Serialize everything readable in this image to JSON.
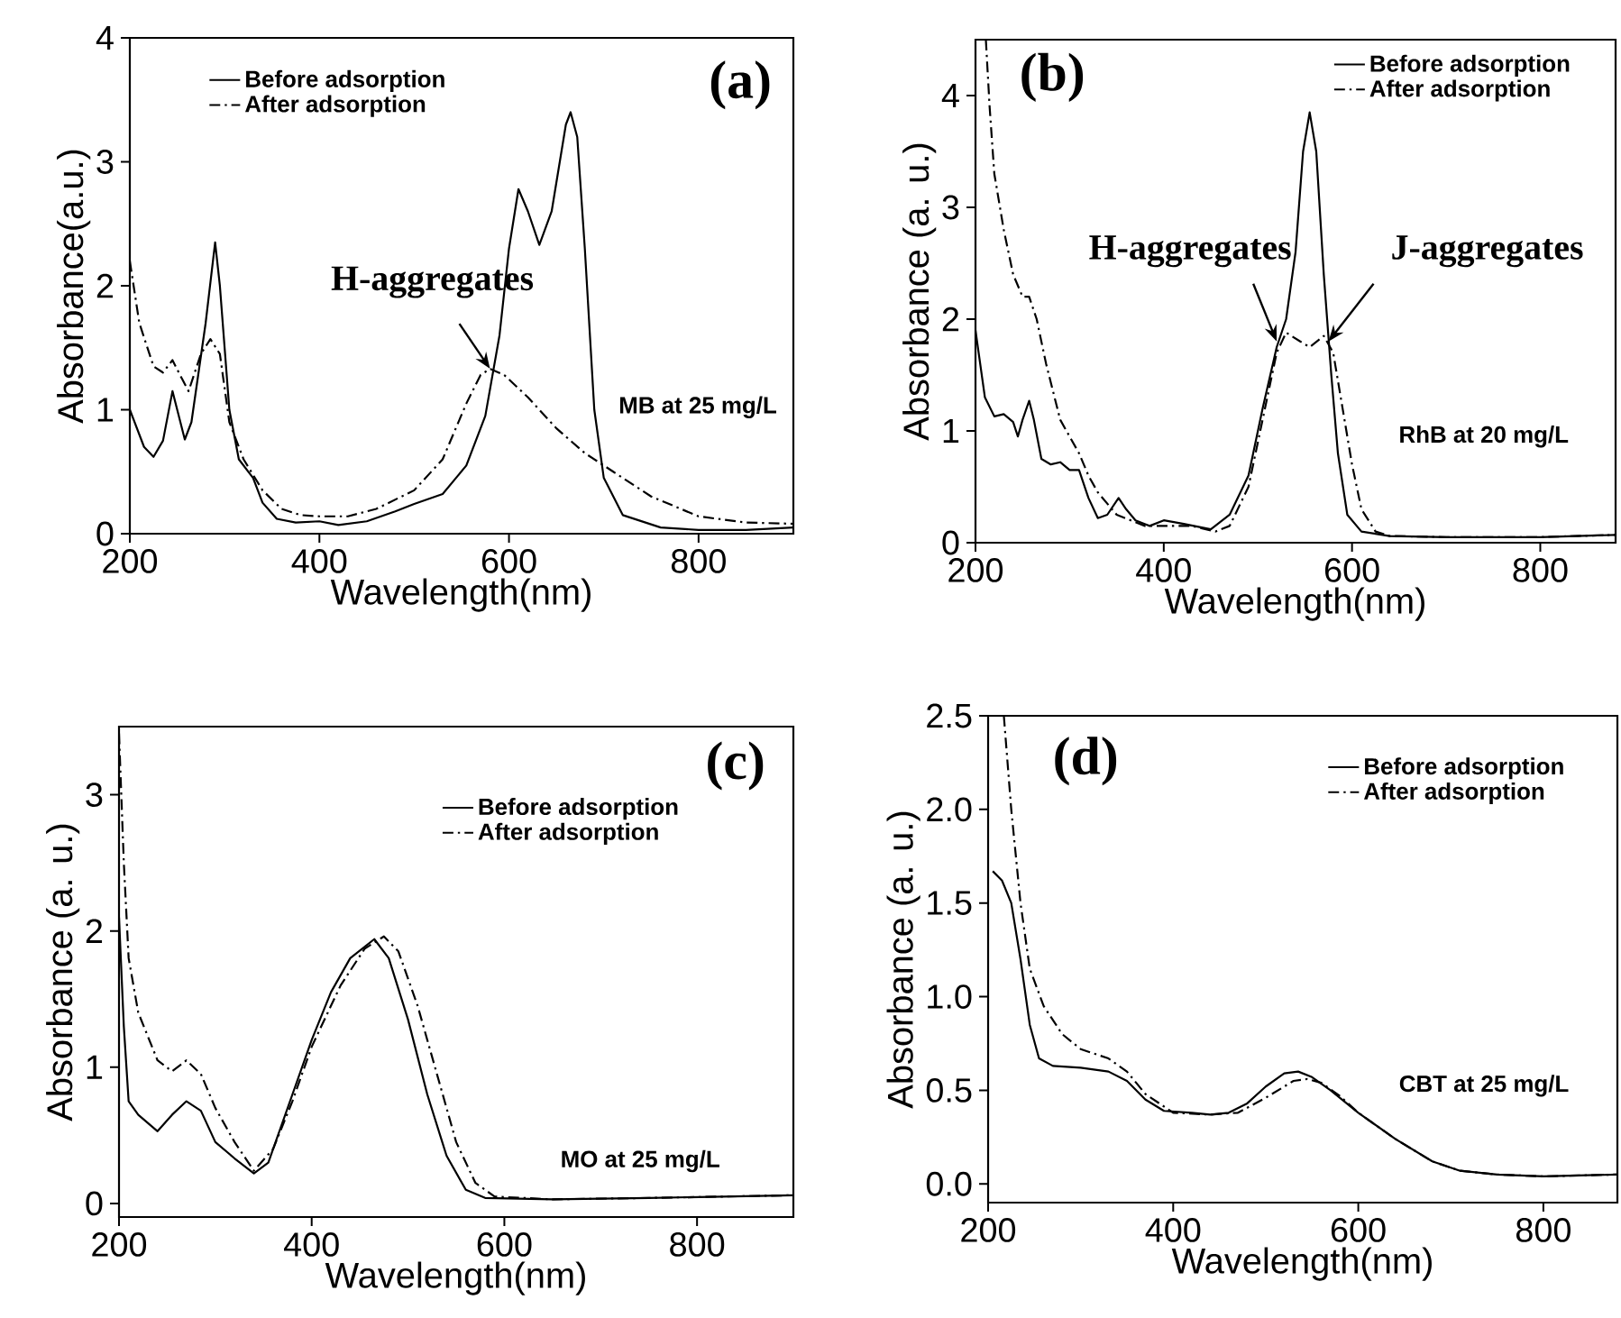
{
  "chart_data": [
    {
      "type": "line",
      "xlabel": "Wavelength(nm)",
      "ylabel": "Absorbance(a.u.)",
      "xlim": [
        200,
        900
      ],
      "ylim": [
        0,
        4
      ],
      "xticks": [
        200,
        400,
        600,
        800
      ],
      "yticks": [
        0,
        1,
        2,
        3,
        4
      ],
      "legend": "top left",
      "annotations": [
        "(a)",
        "MB at 25 mg/L",
        {
          "text": "H-aggregates",
          "x": 580,
          "y": 1.33
        }
      ],
      "series": [
        {
          "name": "Before adsorption",
          "color": "#000000",
          "line_style": "solid",
          "x": [
            200,
            215,
            225,
            235,
            245,
            250,
            258,
            265,
            280,
            290,
            295,
            305,
            315,
            330,
            340,
            355,
            375,
            400,
            420,
            450,
            480,
            500,
            530,
            555,
            575,
            590,
            600,
            610,
            620,
            632,
            645,
            660,
            665,
            672,
            680,
            690,
            700,
            720,
            760,
            800,
            850,
            900
          ],
          "values": [
            1.0,
            0.7,
            0.62,
            0.75,
            1.15,
            1.0,
            0.76,
            0.9,
            1.7,
            2.35,
            2.0,
            1.0,
            0.6,
            0.45,
            0.25,
            0.12,
            0.09,
            0.1,
            0.07,
            0.1,
            0.18,
            0.24,
            0.32,
            0.55,
            0.95,
            1.6,
            2.3,
            2.78,
            2.6,
            2.33,
            2.6,
            3.3,
            3.4,
            3.2,
            2.3,
            1.0,
            0.45,
            0.15,
            0.05,
            0.03,
            0.03,
            0.05
          ]
        },
        {
          "name": "After adsorption",
          "color": "#000000",
          "line_style": "dashdot",
          "x": [
            200,
            210,
            225,
            235,
            245,
            255,
            262,
            275,
            285,
            295,
            305,
            320,
            340,
            360,
            380,
            400,
            430,
            460,
            500,
            530,
            555,
            570,
            580,
            595,
            620,
            650,
            680,
            710,
            750,
            800,
            850,
            900
          ],
          "values": [
            2.2,
            1.7,
            1.35,
            1.3,
            1.4,
            1.25,
            1.15,
            1.45,
            1.57,
            1.45,
            0.9,
            0.6,
            0.35,
            0.2,
            0.15,
            0.14,
            0.14,
            0.2,
            0.35,
            0.6,
            1.05,
            1.28,
            1.33,
            1.28,
            1.1,
            0.85,
            0.65,
            0.5,
            0.3,
            0.14,
            0.09,
            0.08
          ]
        }
      ]
    },
    {
      "type": "line",
      "xlabel": "Wavelength(nm)",
      "ylabel": "Absorbance (a. u.)",
      "xlim": [
        200,
        880
      ],
      "ylim": [
        0,
        4.5
      ],
      "xticks": [
        200,
        400,
        600,
        800
      ],
      "yticks": [
        0,
        1,
        2,
        3,
        4
      ],
      "legend": "top right",
      "annotations": [
        "(b)",
        "RhB at 20 mg/L",
        {
          "text": "H-aggregates",
          "x": 520,
          "y": 1.8
        },
        {
          "text": "J-aggregates",
          "x": 575,
          "y": 1.8
        }
      ],
      "series": [
        {
          "name": "Before adsorption",
          "color": "#000000",
          "line_style": "solid",
          "x": [
            200,
            210,
            220,
            230,
            240,
            245,
            250,
            257,
            262,
            270,
            280,
            290,
            300,
            310,
            320,
            330,
            340,
            352,
            360,
            370,
            385,
            400,
            420,
            450,
            470,
            490,
            505,
            520,
            530,
            540,
            548,
            555,
            562,
            570,
            578,
            585,
            595,
            610,
            640,
            700,
            800,
            880
          ],
          "values": [
            1.9,
            1.3,
            1.13,
            1.15,
            1.08,
            0.95,
            1.1,
            1.27,
            1.1,
            0.75,
            0.7,
            0.72,
            0.65,
            0.65,
            0.4,
            0.22,
            0.25,
            0.4,
            0.3,
            0.2,
            0.15,
            0.2,
            0.17,
            0.12,
            0.25,
            0.6,
            1.2,
            1.75,
            2.0,
            2.6,
            3.5,
            3.85,
            3.5,
            2.4,
            1.5,
            0.8,
            0.25,
            0.1,
            0.06,
            0.05,
            0.05,
            0.07
          ]
        },
        {
          "name": "After adsorption",
          "color": "#000000",
          "line_style": "dashdot",
          "x": [
            211,
            215,
            220,
            230,
            240,
            250,
            257,
            265,
            275,
            290,
            310,
            320,
            330,
            350,
            380,
            400,
            430,
            455,
            470,
            490,
            505,
            520,
            530,
            545,
            555,
            570,
            580,
            590,
            600,
            610,
            625,
            640,
            700,
            800,
            880
          ],
          "values": [
            4.5,
            3.9,
            3.3,
            2.8,
            2.4,
            2.2,
            2.2,
            2.0,
            1.6,
            1.1,
            0.8,
            0.6,
            0.45,
            0.25,
            0.15,
            0.15,
            0.15,
            0.1,
            0.15,
            0.5,
            1.1,
            1.7,
            1.88,
            1.8,
            1.75,
            1.85,
            1.7,
            1.2,
            0.7,
            0.3,
            0.1,
            0.06,
            0.05,
            0.05,
            0.07
          ]
        }
      ]
    },
    {
      "type": "line",
      "xlabel": "Wavelength(nm)",
      "ylabel": "Absorbance (a. u.)",
      "xlim": [
        200,
        900
      ],
      "ylim": [
        -0.1,
        3.5
      ],
      "xticks": [
        200,
        400,
        600,
        800
      ],
      "yticks": [
        0,
        1,
        2,
        3
      ],
      "legend": "top right",
      "annotations": [
        "(c)",
        "MO at 25 mg/L"
      ],
      "series": [
        {
          "name": "Before adsorption",
          "color": "#000000",
          "line_style": "solid",
          "x": [
            200,
            205,
            210,
            220,
            240,
            255,
            270,
            285,
            300,
            320,
            340,
            355,
            380,
            400,
            420,
            440,
            465,
            480,
            500,
            520,
            540,
            560,
            580,
            650,
            750,
            900
          ],
          "values": [
            2.1,
            1.3,
            0.75,
            0.65,
            0.53,
            0.65,
            0.75,
            0.68,
            0.45,
            0.33,
            0.22,
            0.3,
            0.8,
            1.2,
            1.55,
            1.8,
            1.94,
            1.8,
            1.35,
            0.8,
            0.35,
            0.1,
            0.04,
            0.03,
            0.04,
            0.06
          ]
        },
        {
          "name": "After adsorption",
          "color": "#000000",
          "line_style": "dashdot",
          "x": [
            200,
            205,
            210,
            220,
            240,
            255,
            270,
            285,
            300,
            320,
            340,
            360,
            380,
            400,
            430,
            455,
            475,
            490,
            510,
            530,
            550,
            570,
            590,
            650,
            750,
            900
          ],
          "values": [
            3.45,
            2.5,
            1.8,
            1.4,
            1.05,
            0.97,
            1.05,
            0.95,
            0.7,
            0.45,
            0.24,
            0.4,
            0.75,
            1.15,
            1.6,
            1.87,
            1.96,
            1.85,
            1.45,
            0.95,
            0.45,
            0.15,
            0.05,
            0.03,
            0.04,
            0.06
          ]
        }
      ]
    },
    {
      "type": "line",
      "xlabel": "Wavelength(nm)",
      "ylabel": "Absorbance (a. u.)",
      "xlim": [
        200,
        880
      ],
      "ylim": [
        -0.1,
        2.5
      ],
      "xticks": [
        200,
        400,
        600,
        800
      ],
      "yticks": [
        {
          "value": 0,
          "label": "0.0"
        },
        {
          "value": 0.5,
          "label": "0.5"
        },
        {
          "value": 1,
          "label": "1.0"
        },
        {
          "value": 1.5,
          "label": "1.5"
        },
        {
          "value": 2,
          "label": "2.0"
        },
        {
          "value": 2.5,
          "label": "2.5"
        }
      ],
      "legend": "top right",
      "annotations": [
        "(d)",
        "CBT at 25 mg/L"
      ],
      "series": [
        {
          "name": "Before adsorption",
          "color": "#000000",
          "line_style": "solid",
          "x": [
            205,
            215,
            225,
            235,
            245,
            255,
            270,
            300,
            330,
            350,
            370,
            390,
            420,
            440,
            460,
            480,
            500,
            520,
            535,
            550,
            570,
            600,
            640,
            680,
            710,
            750,
            800,
            880
          ],
          "values": [
            1.67,
            1.62,
            1.5,
            1.2,
            0.85,
            0.67,
            0.63,
            0.62,
            0.6,
            0.55,
            0.45,
            0.39,
            0.38,
            0.37,
            0.38,
            0.43,
            0.52,
            0.59,
            0.6,
            0.57,
            0.5,
            0.38,
            0.24,
            0.12,
            0.07,
            0.05,
            0.04,
            0.05
          ]
        },
        {
          "name": "After adsorption",
          "color": "#000000",
          "line_style": "dashdot",
          "x": [
            217,
            225,
            235,
            245,
            260,
            280,
            300,
            330,
            350,
            370,
            400,
            440,
            470,
            500,
            530,
            545,
            560,
            580,
            600,
            640,
            680,
            710,
            750,
            800,
            880
          ],
          "values": [
            2.5,
            2.0,
            1.5,
            1.15,
            0.95,
            0.8,
            0.72,
            0.67,
            0.6,
            0.48,
            0.38,
            0.37,
            0.38,
            0.46,
            0.55,
            0.56,
            0.54,
            0.47,
            0.38,
            0.24,
            0.12,
            0.07,
            0.05,
            0.04,
            0.05
          ]
        }
      ]
    }
  ]
}
